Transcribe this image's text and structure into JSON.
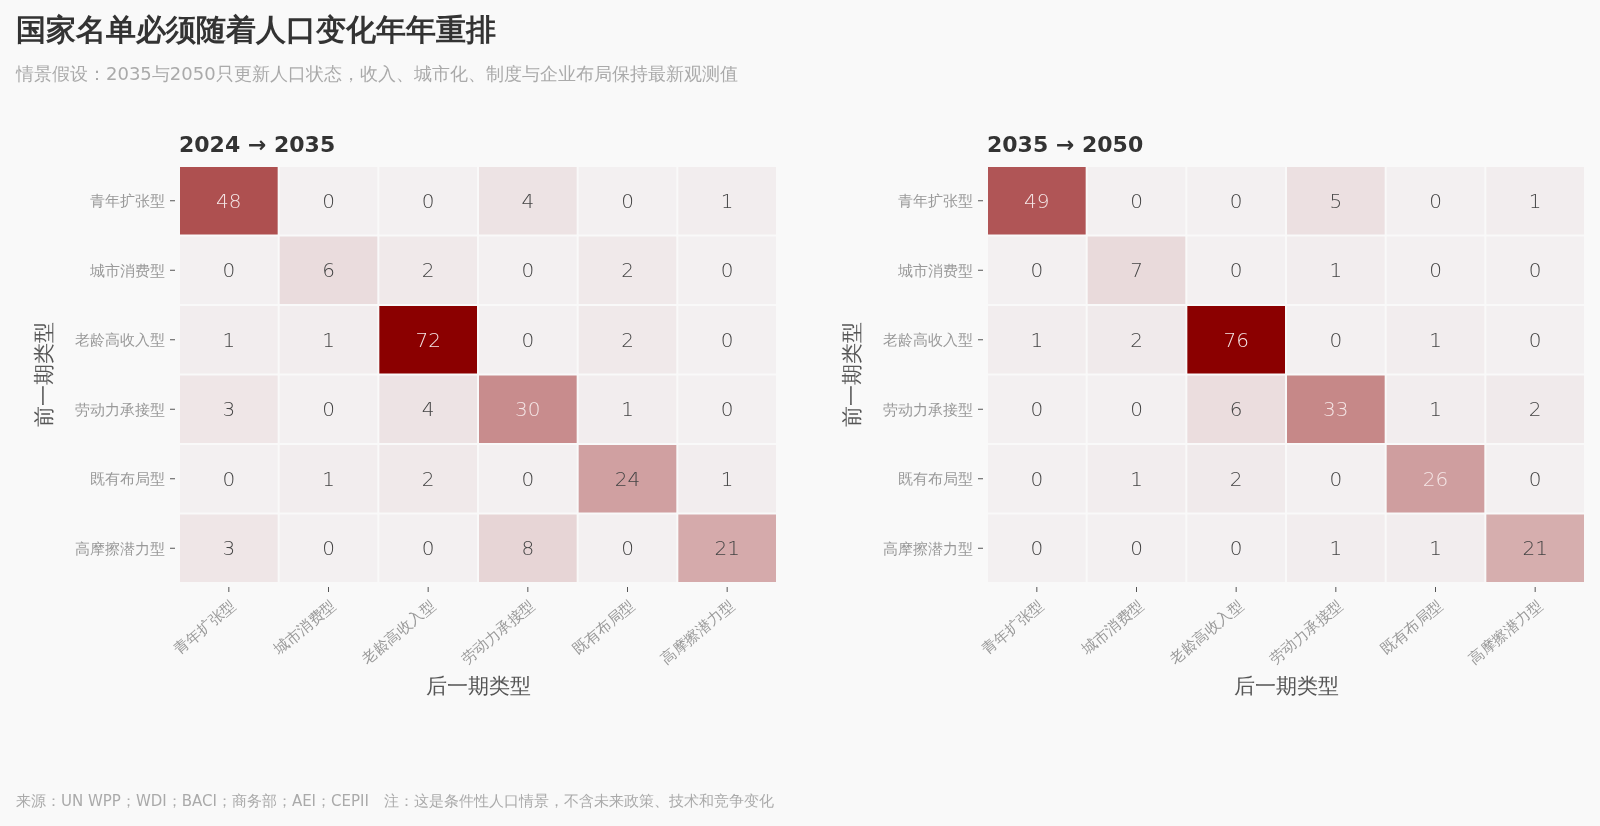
{
  "chart_data": [
    {
      "type": "other",
      "title": "国家名单必须随着人口变化年年重排",
      "subtitle": "情景假设：2035与2050只更新人口状态，收入、城市化、制度与企业布局保持最新观测值",
      "annotations": [
        "来源：UN WPP；WDI；BACI；商务部；AEI；CEPII　注：这是条件性人口情景，不含未来政策、技术和竞争变化"
      ]
    },
    {
      "type": "heatmap",
      "title": "2024 → 2035",
      "xlabel": "后一期类型",
      "ylabel": "前一期类型",
      "categories": [
        "青年扩张型",
        "城市消费型",
        "老龄高收入型",
        "劳动力承接型",
        "既有布局型",
        "高摩擦潜力型"
      ],
      "y_categories": [
        "青年扩张型",
        "城市消费型",
        "老龄高收入型",
        "劳动力承接型",
        "既有布局型",
        "高摩擦潜力型"
      ],
      "data_labels": true,
      "cells": [
        [
          48,
          0,
          0,
          4,
          0,
          1
        ],
        [
          0,
          6,
          2,
          0,
          2,
          0
        ],
        [
          1,
          1,
          72,
          0,
          2,
          0
        ],
        [
          3,
          0,
          4,
          30,
          1,
          0
        ],
        [
          0,
          1,
          2,
          0,
          24,
          1
        ],
        [
          3,
          0,
          0,
          8,
          0,
          21
        ]
      ]
    },
    {
      "type": "heatmap",
      "title": "2035 → 2050",
      "xlabel": "后一期类型",
      "ylabel": "前一期类型",
      "categories": [
        "青年扩张型",
        "城市消费型",
        "老龄高收入型",
        "劳动力承接型",
        "既有布局型",
        "高摩擦潜力型"
      ],
      "y_categories": [
        "青年扩张型",
        "城市消费型",
        "老龄高收入型",
        "劳动力承接型",
        "既有布局型",
        "高摩擦潜力型"
      ],
      "data_labels": true,
      "cells": [
        [
          49,
          0,
          0,
          5,
          0,
          1
        ],
        [
          0,
          7,
          0,
          1,
          0,
          0
        ],
        [
          1,
          2,
          76,
          0,
          1,
          0
        ],
        [
          0,
          0,
          6,
          33,
          1,
          2
        ],
        [
          0,
          1,
          2,
          0,
          26,
          0
        ],
        [
          0,
          0,
          0,
          1,
          1,
          21
        ]
      ]
    }
  ]
}
